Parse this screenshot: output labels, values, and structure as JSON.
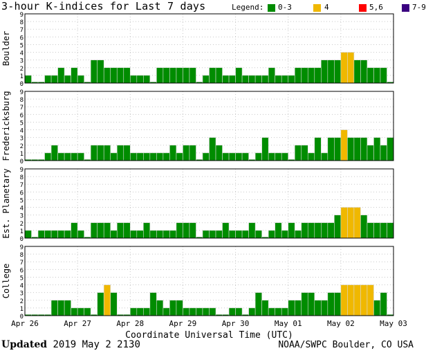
{
  "chart_data": {
    "type": "bar",
    "title": "3-hour K-indices for Last 7 days",
    "legend": {
      "label": "Legend:",
      "entries": [
        {
          "label": "0-3",
          "color": "#008c00"
        },
        {
          "label": "4",
          "color": "#f0b800"
        },
        {
          "label": "5,6",
          "color": "#ff0000"
        },
        {
          "label": "7-9",
          "color": "#3a0080"
        }
      ]
    },
    "xlabel": "Coordinate Universal Time (UTC)",
    "x_ticks": [
      "Apr 26",
      "Apr 27",
      "Apr 28",
      "Apr 29",
      "Apr 30",
      "May 01",
      "May 02",
      "May 03"
    ],
    "ylim": [
      0,
      9
    ],
    "y_ticks": [
      "0",
      "1",
      "2",
      "3",
      "4",
      "5",
      "6",
      "7",
      "8",
      "9"
    ],
    "intervals_per_day": 8,
    "panels": [
      {
        "name": "Boulder",
        "values": [
          1,
          0,
          0,
          1,
          1,
          2,
          1,
          2,
          1,
          0,
          3,
          3,
          2,
          2,
          2,
          2,
          1,
          1,
          1,
          0,
          2,
          2,
          2,
          2,
          2,
          2,
          0,
          1,
          2,
          2,
          1,
          1,
          2,
          1,
          1,
          1,
          1,
          2,
          1,
          1,
          1,
          2,
          2,
          2,
          2,
          3,
          3,
          3,
          4,
          4,
          3,
          3,
          2,
          2,
          2,
          0
        ]
      },
      {
        "name": "Fredericksburg",
        "values": [
          0,
          0,
          0,
          1,
          2,
          1,
          1,
          1,
          1,
          0,
          2,
          2,
          2,
          1,
          2,
          2,
          1,
          1,
          1,
          1,
          1,
          1,
          2,
          1,
          2,
          2,
          0,
          1,
          3,
          2,
          1,
          1,
          1,
          1,
          0,
          1,
          3,
          1,
          1,
          1,
          0,
          2,
          2,
          1,
          3,
          1,
          3,
          3,
          4,
          3,
          3,
          3,
          2,
          3,
          2,
          3
        ]
      },
      {
        "name": "Est. Planetary",
        "values": [
          1,
          0,
          1,
          1,
          1,
          1,
          1,
          2,
          1,
          0,
          2,
          2,
          2,
          1,
          2,
          2,
          1,
          1,
          2,
          1,
          1,
          1,
          1,
          2,
          2,
          2,
          0,
          1,
          1,
          1,
          2,
          1,
          1,
          1,
          2,
          1,
          0,
          1,
          2,
          1,
          2,
          1,
          2,
          2,
          2,
          2,
          2,
          3,
          4,
          4,
          4,
          3,
          2,
          2,
          2,
          2
        ]
      },
      {
        "name": "College",
        "values": [
          0,
          0,
          0,
          0,
          2,
          2,
          2,
          1,
          1,
          1,
          0,
          3,
          4,
          3,
          0,
          0,
          1,
          1,
          1,
          3,
          2,
          1,
          2,
          2,
          1,
          1,
          1,
          1,
          1,
          0,
          0,
          1,
          1,
          0,
          1,
          3,
          2,
          1,
          1,
          1,
          2,
          2,
          3,
          3,
          2,
          2,
          3,
          3,
          4,
          4,
          4,
          4,
          4,
          2,
          3,
          0
        ]
      }
    ]
  },
  "footer": {
    "updated_label": "Updated",
    "updated_value": "2019 May  2 2130",
    "source": "NOAA/SWPC Boulder, CO USA"
  }
}
